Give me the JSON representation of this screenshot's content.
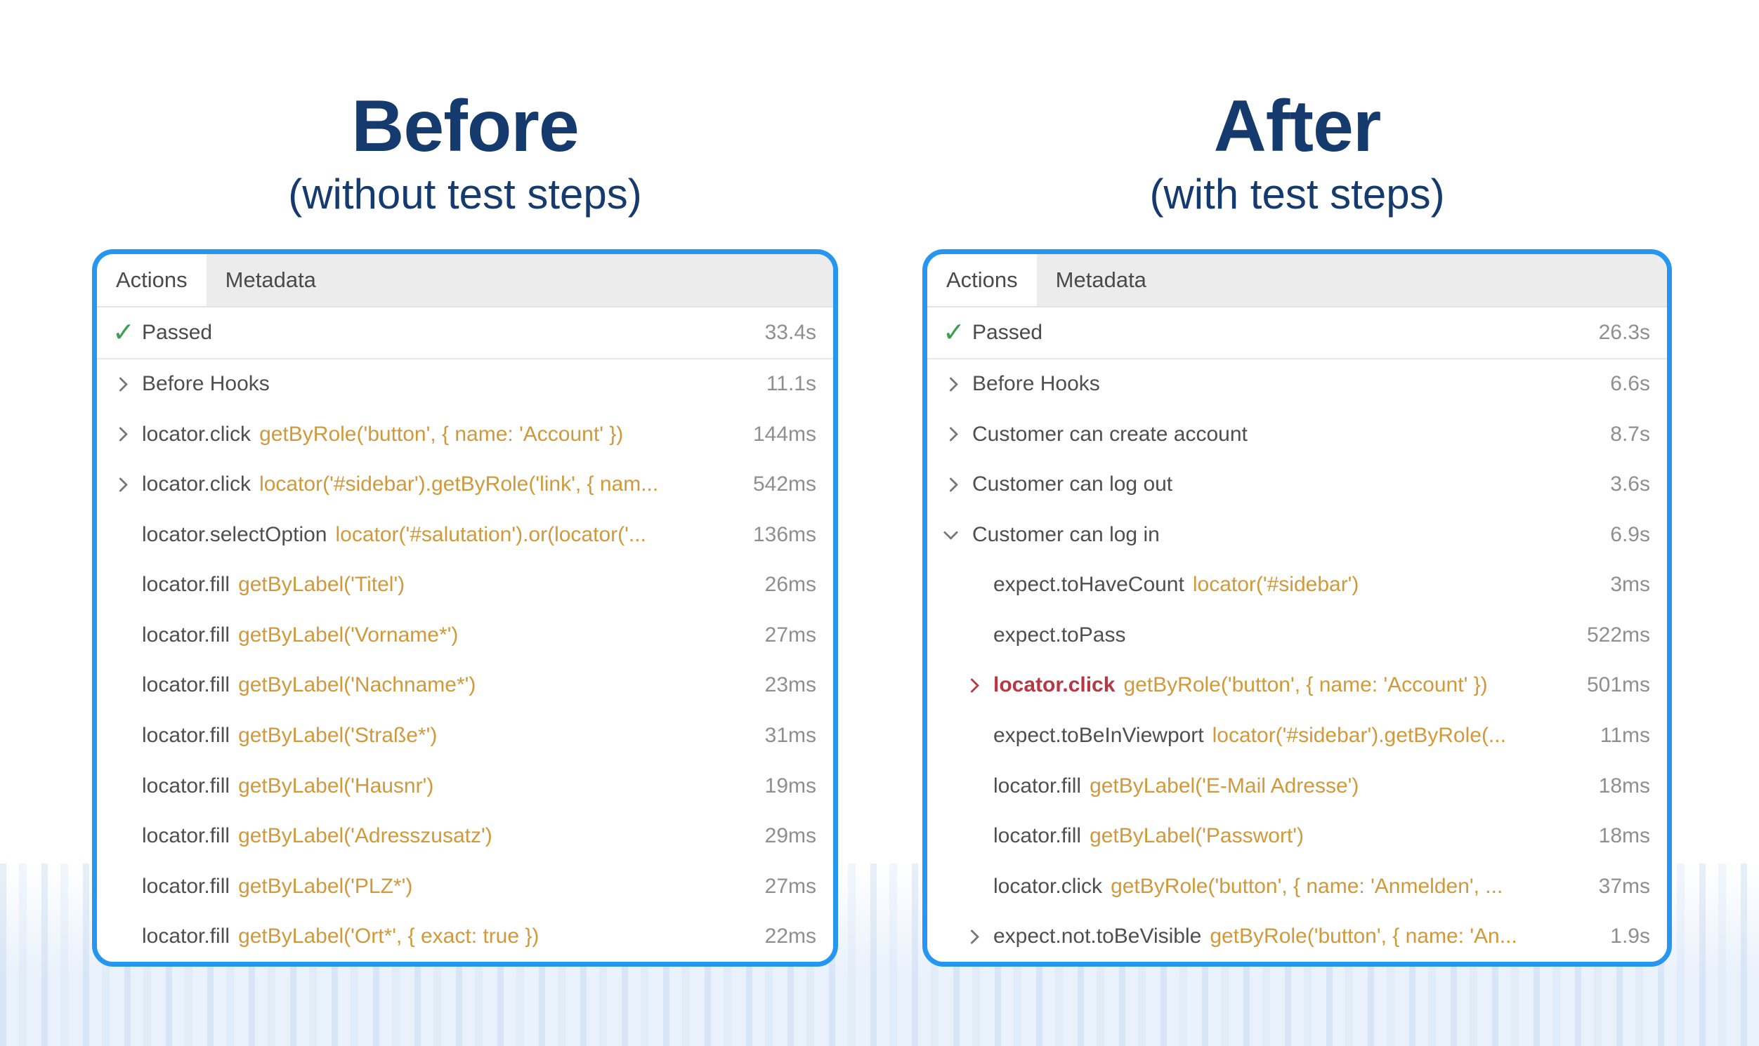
{
  "colors": {
    "panel_border": "#2796f0",
    "title_navy": "#153a6e",
    "selector_orange": "#d0993b",
    "failed_red": "#b73742",
    "passed_green": "#3d9e4c",
    "action_gray": "#4f4f4f",
    "time_gray": "#8f8f8f",
    "tabbar_gray": "#ececec",
    "bottom_tint": "#e9f1fb"
  },
  "icons": {
    "check": "✓"
  },
  "left": {
    "title": "Before",
    "subtitle": "(without test steps)",
    "tabs": {
      "actions": "Actions",
      "metadata": "Metadata"
    },
    "status": {
      "label": "Passed",
      "time": "33.4s"
    },
    "rows": [
      {
        "name": "Before Hooks",
        "selector": "",
        "time": "11.1s"
      },
      {
        "name": "locator.click",
        "selector": "getByRole('button', { name: 'Account' })",
        "time": "144ms"
      },
      {
        "name": "locator.click",
        "selector": "locator('#sidebar').getByRole('link', { nam...",
        "time": "542ms"
      },
      {
        "name": "locator.selectOption",
        "selector": "locator('#salutation').or(locator('...",
        "time": "136ms"
      },
      {
        "name": "locator.fill",
        "selector": "getByLabel('Titel')",
        "time": "26ms"
      },
      {
        "name": "locator.fill",
        "selector": "getByLabel('Vorname*')",
        "time": "27ms"
      },
      {
        "name": "locator.fill",
        "selector": "getByLabel('Nachname*')",
        "time": "23ms"
      },
      {
        "name": "locator.fill",
        "selector": "getByLabel('Straße*')",
        "time": "31ms"
      },
      {
        "name": "locator.fill",
        "selector": "getByLabel('Hausnr')",
        "time": "19ms"
      },
      {
        "name": "locator.fill",
        "selector": "getByLabel('Adresszusatz')",
        "time": "29ms"
      },
      {
        "name": "locator.fill",
        "selector": "getByLabel('PLZ*')",
        "time": "27ms"
      },
      {
        "name": "locator.fill",
        "selector": "getByLabel('Ort*', { exact: true })",
        "time": "22ms"
      }
    ]
  },
  "right": {
    "title": "After",
    "subtitle": "(with test steps)",
    "tabs": {
      "actions": "Actions",
      "metadata": "Metadata"
    },
    "status": {
      "label": "Passed",
      "time": "26.3s"
    },
    "rows": [
      {
        "name": "Before Hooks",
        "selector": "",
        "time": "6.6s"
      },
      {
        "name": "Customer can create account",
        "selector": "",
        "time": "8.7s"
      },
      {
        "name": "Customer can log out",
        "selector": "",
        "time": "3.6s"
      },
      {
        "name": "Customer can log in",
        "selector": "",
        "time": "6.9s"
      },
      {
        "name": "expect.toHaveCount",
        "selector": "locator('#sidebar')",
        "time": "3ms"
      },
      {
        "name": "expect.toPass",
        "selector": "",
        "time": "522ms"
      },
      {
        "name": "locator.click",
        "selector": "getByRole('button', { name: 'Account' })",
        "time": "501ms"
      },
      {
        "name": "expect.toBeInViewport",
        "selector": "locator('#sidebar').getByRole(...",
        "time": "11ms"
      },
      {
        "name": "locator.fill",
        "selector": "getByLabel('E-Mail Adresse')",
        "time": "18ms"
      },
      {
        "name": "locator.fill",
        "selector": "getByLabel('Passwort')",
        "time": "18ms"
      },
      {
        "name": "locator.click",
        "selector": "getByRole('button', { name: 'Anmelden', ...",
        "time": "37ms"
      },
      {
        "name": "expect.not.toBeVisible",
        "selector": "getByRole('button', { name: 'An...",
        "time": "1.9s"
      }
    ]
  }
}
